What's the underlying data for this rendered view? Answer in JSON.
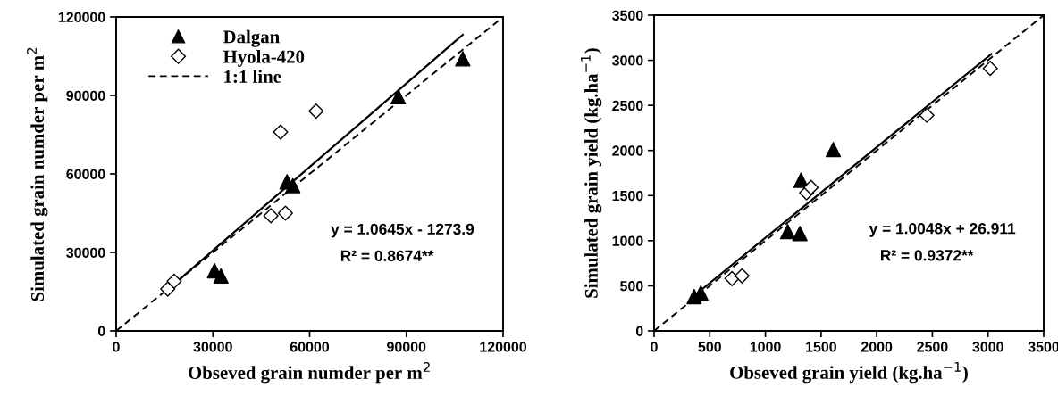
{
  "chart_data": [
    {
      "type": "scatter",
      "xlabel": "Obseved grain numder per m$^{2}$",
      "ylabel": "Simulated grain numder per m$^{2}$",
      "xlim": [
        0,
        120000
      ],
      "ylim": [
        0,
        120000
      ],
      "xticks": [
        0,
        30000,
        60000,
        90000,
        120000
      ],
      "yticks": [
        0,
        30000,
        60000,
        90000,
        120000
      ],
      "grid": false,
      "legend": "top left",
      "annotations": [
        "y = 1.0645x - 1273.9",
        "R² = 0.8674**"
      ],
      "series": [
        {
          "name": "Dalgan",
          "color": "#000000",
          "marker": "triangle",
          "x": [
            30500,
            32500,
            53000,
            54800,
            87500,
            107500
          ],
          "values": [
            23000,
            21000,
            57000,
            55500,
            89500,
            104000
          ]
        },
        {
          "name": "Hyola-420",
          "color": "#ffffff",
          "marker": "diamond",
          "x": [
            16000,
            18000,
            48000,
            52500,
            51000,
            62000
          ],
          "values": [
            16000,
            19000,
            44000,
            45000,
            76000,
            84000
          ]
        },
        {
          "type": "line",
          "color": "#000000",
          "line_style": "solid",
          "marker": "none",
          "x": [
            16000,
            107500
          ],
          "values": [
            15800,
            113200
          ]
        },
        {
          "type": "line",
          "name": "1:1 line",
          "color": "#000000",
          "line_style": "dashed",
          "marker": "none",
          "x": [
            0,
            120000
          ],
          "values": [
            0,
            120000
          ]
        }
      ]
    },
    {
      "type": "scatter",
      "xlabel": "Obseved grain yield (kg.ha$^{−1}$)",
      "ylabel": "Simulated grain yield (kg.ha$^{−1}$)",
      "xlim": [
        0,
        3500
      ],
      "ylim": [
        0,
        3500
      ],
      "xticks": [
        0,
        500,
        1000,
        1500,
        2000,
        2500,
        3000,
        3500
      ],
      "yticks": [
        0,
        500,
        1000,
        1500,
        2000,
        2500,
        3000,
        3500
      ],
      "grid": false,
      "annotations": [
        "y = 1.0048x + 26.911",
        "R² = 0.9372**"
      ],
      "series": [
        {
          "color": "#000000",
          "marker": "triangle",
          "x": [
            360,
            420,
            1200,
            1310,
            1320,
            1610
          ],
          "values": [
            380,
            420,
            1100,
            1080,
            1670,
            2010
          ]
        },
        {
          "color": "#ffffff",
          "marker": "diamond",
          "x": [
            700,
            790,
            1370,
            1410,
            2450,
            3020
          ],
          "values": [
            580,
            610,
            1530,
            1590,
            2390,
            2910
          ]
        },
        {
          "type": "line",
          "color": "#000000",
          "line_style": "solid",
          "marker": "none",
          "x": [
            370,
            3030
          ],
          "values": [
            400,
            3070
          ]
        },
        {
          "type": "line",
          "color": "#000000",
          "line_style": "dashed",
          "marker": "none",
          "x": [
            0,
            3500
          ],
          "values": [
            0,
            3500
          ]
        }
      ]
    }
  ]
}
